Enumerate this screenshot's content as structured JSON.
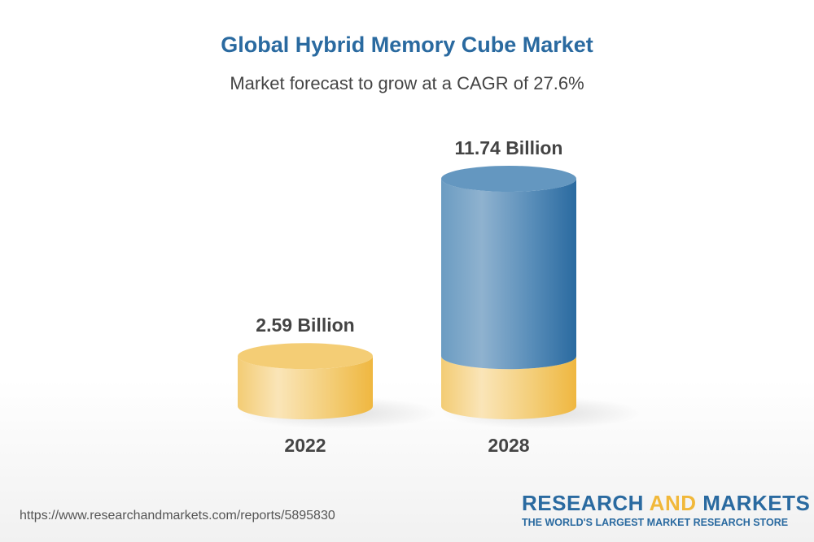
{
  "header": {
    "title": "Global Hybrid Memory Cube Market",
    "subtitle": "Market forecast to grow at a CAGR of 27.6%"
  },
  "chart_data": {
    "type": "bar",
    "style": "3d-cylinder",
    "categories": [
      "2022",
      "2028"
    ],
    "values": [
      2.59,
      11.74
    ],
    "data_labels": [
      "2.59 Billion",
      "11.74 Billion"
    ],
    "unit": "Billion",
    "colors": {
      "base": "#f1b83a",
      "growth": "#2a6aa0"
    },
    "grid": false
  },
  "footer": {
    "url": "https://www.researchandmarkets.com/reports/5895830",
    "logo_part1": "RESEARCH ",
    "logo_part2": "AND",
    "logo_part3": " MARKETS",
    "logo_tagline": "THE WORLD'S LARGEST MARKET RESEARCH STORE"
  }
}
